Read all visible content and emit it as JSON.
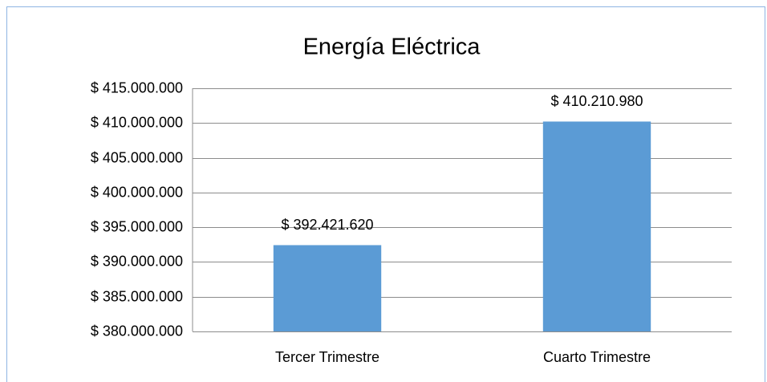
{
  "chart_data": {
    "type": "bar",
    "title": "Energía Eléctrica",
    "categories": [
      "Tercer Trimestre",
      "Cuarto Trimestre"
    ],
    "values": [
      392421620,
      410210980
    ],
    "value_labels": [
      "$ 392.421.620",
      "$ 410.210.980"
    ],
    "color": "#5b9bd5",
    "ylim": [
      380000000,
      415000000
    ],
    "yticks": [
      {
        "value": 380000000,
        "label": "$ 380.000.000"
      },
      {
        "value": 385000000,
        "label": "$ 385.000.000"
      },
      {
        "value": 390000000,
        "label": "$ 390.000.000"
      },
      {
        "value": 395000000,
        "label": "$ 395.000.000"
      },
      {
        "value": 400000000,
        "label": "$ 400.000.000"
      },
      {
        "value": 405000000,
        "label": "$ 405.000.000"
      },
      {
        "value": 410000000,
        "label": "$ 410.000.000"
      },
      {
        "value": 415000000,
        "label": "$ 415.000.000"
      }
    ],
    "grid": true
  }
}
